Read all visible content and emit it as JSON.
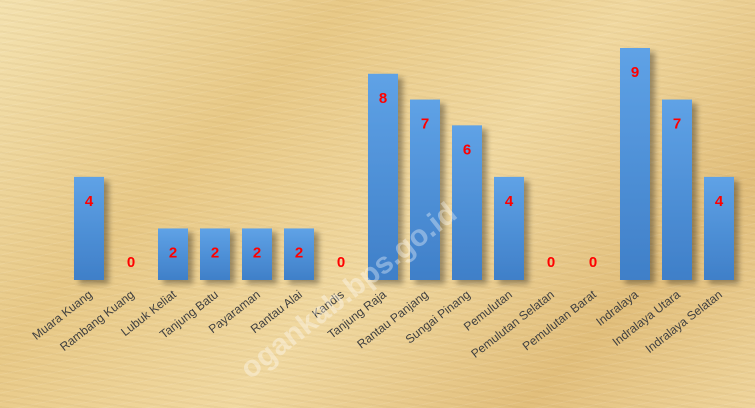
{
  "watermark": "ogankab.bps.go.id",
  "chart_data": {
    "type": "bar",
    "categories": [
      "Muara Kuang",
      "Rambang Kuang",
      "Lubuk Keliat",
      "Tanjung Batu",
      "Payaraman",
      "Rantau Alai",
      "Kandis",
      "Tanjung Raja",
      "Rantau Panjang",
      "Sungai Pinang",
      "Pemulutan",
      "Pemulutan Selatan",
      "Pemulutan Barat",
      "Indralaya",
      "Indralaya Utara",
      "Indralaya Selatan"
    ],
    "values": [
      4,
      0,
      2,
      2,
      2,
      2,
      0,
      8,
      7,
      6,
      4,
      0,
      0,
      9,
      7,
      4
    ],
    "ylim": [
      0,
      9
    ],
    "grid": false,
    "legend": "none",
    "bar_color": "#4a8fd6",
    "label_color": "#ff0000"
  }
}
